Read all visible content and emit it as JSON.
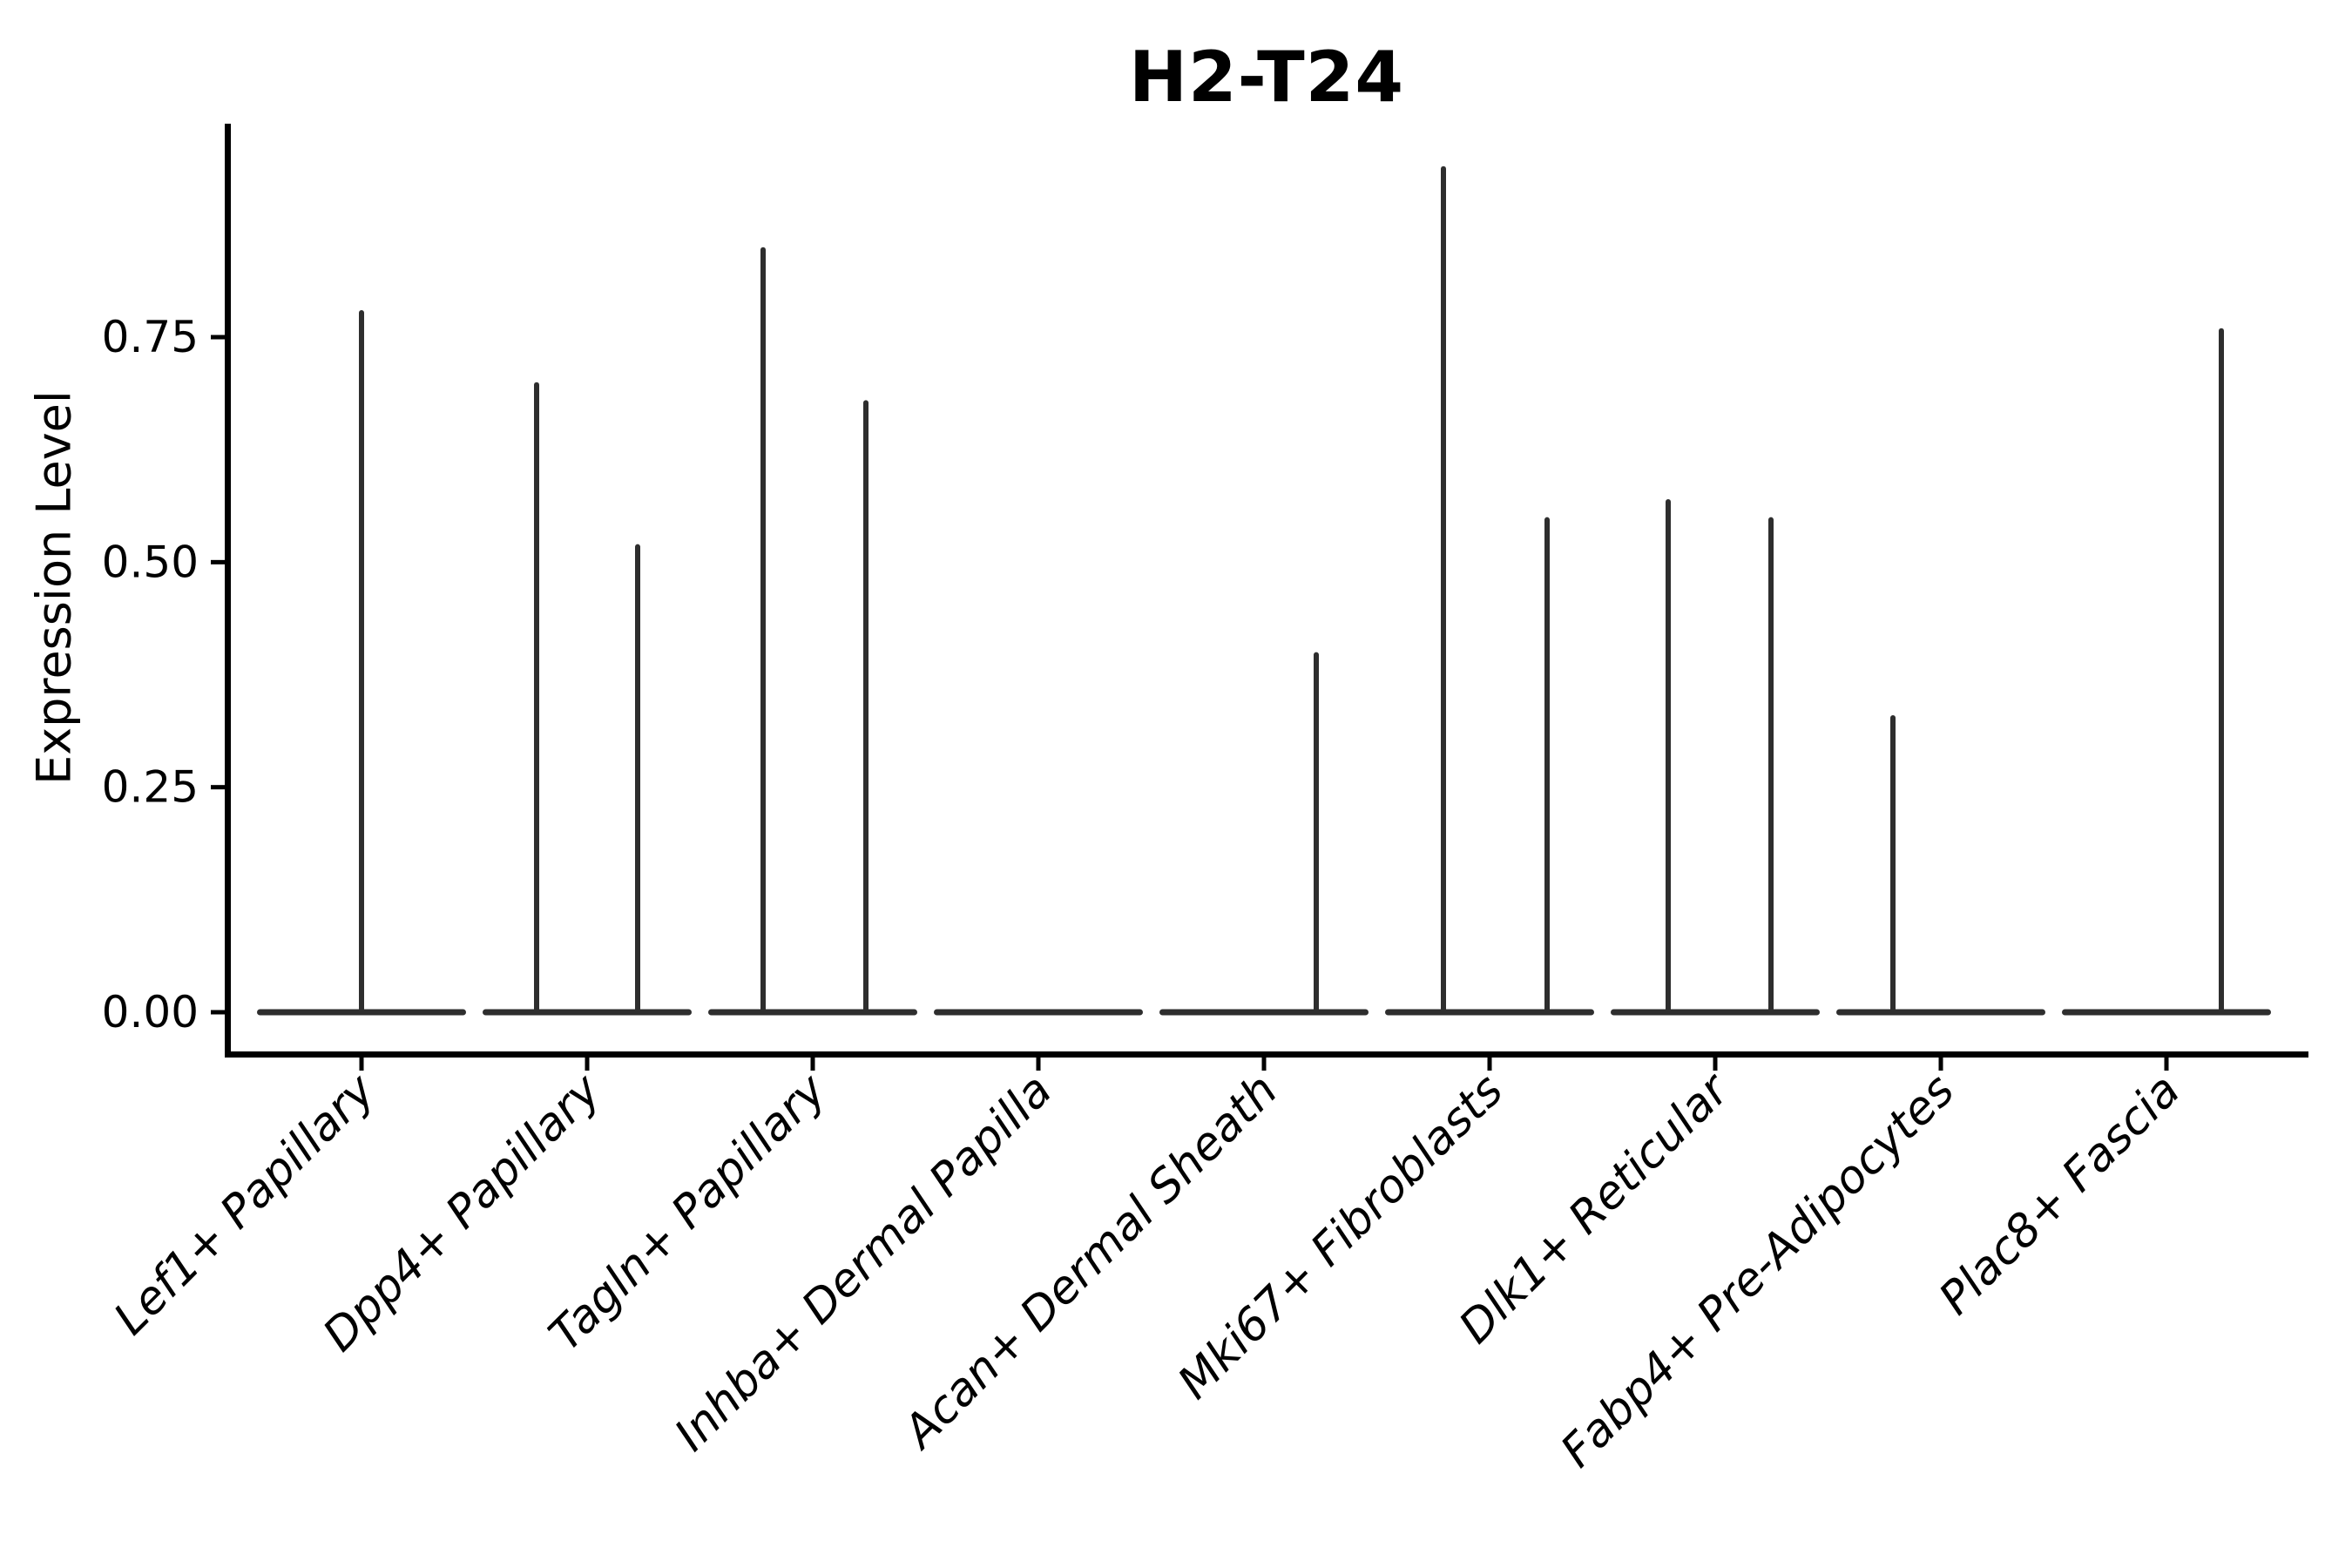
{
  "chart_data": {
    "type": "violin",
    "title": "H2-T24",
    "ylabel": "Expression Level",
    "xlabel": "",
    "ylim": [
      -0.05,
      0.99
    ],
    "grid": false,
    "legend": "none",
    "yticks": [
      {
        "label": "0.00",
        "value": 0.0
      },
      {
        "label": "0.25",
        "value": 0.25
      },
      {
        "label": "0.50",
        "value": 0.5
      },
      {
        "label": "0.75",
        "value": 0.75
      }
    ],
    "baseline_value": 0,
    "categories": [
      {
        "label": "Lef1+ Papillary",
        "spikes": [
          {
            "offset": 0,
            "peak": 0.78
          }
        ]
      },
      {
        "label": "Dpp4+ Papillary",
        "spikes": [
          {
            "offset": -58,
            "peak": 0.7
          },
          {
            "offset": 58,
            "peak": 0.52
          }
        ]
      },
      {
        "label": "Tagln+ Papillary",
        "spikes": [
          {
            "offset": -57,
            "peak": 0.85
          },
          {
            "offset": 61,
            "peak": 0.68
          }
        ]
      },
      {
        "label": "Inhba+ Dermal Papilla",
        "spikes": []
      },
      {
        "label": "Acan+ Dermal Sheath",
        "spikes": [
          {
            "offset": 60,
            "peak": 0.4
          }
        ]
      },
      {
        "label": "Mki67+ Fibroblasts",
        "spikes": [
          {
            "offset": -53,
            "peak": 0.94
          },
          {
            "offset": 66,
            "peak": 0.55
          }
        ]
      },
      {
        "label": "Dlk1+ Reticular",
        "spikes": [
          {
            "offset": -54,
            "peak": 0.57
          },
          {
            "offset": 64,
            "peak": 0.55
          }
        ]
      },
      {
        "label": "Fabp4+ Pre-Adipocytes",
        "spikes": [
          {
            "offset": -55,
            "peak": 0.33
          }
        ]
      },
      {
        "label": "Plac8+ Fascia",
        "spikes": [
          {
            "offset": 63,
            "peak": 0.76
          }
        ]
      }
    ],
    "colors": {
      "violin": "#2e2e2e",
      "axis": "#000000",
      "text": "#000000",
      "background": "#ffffff"
    }
  }
}
